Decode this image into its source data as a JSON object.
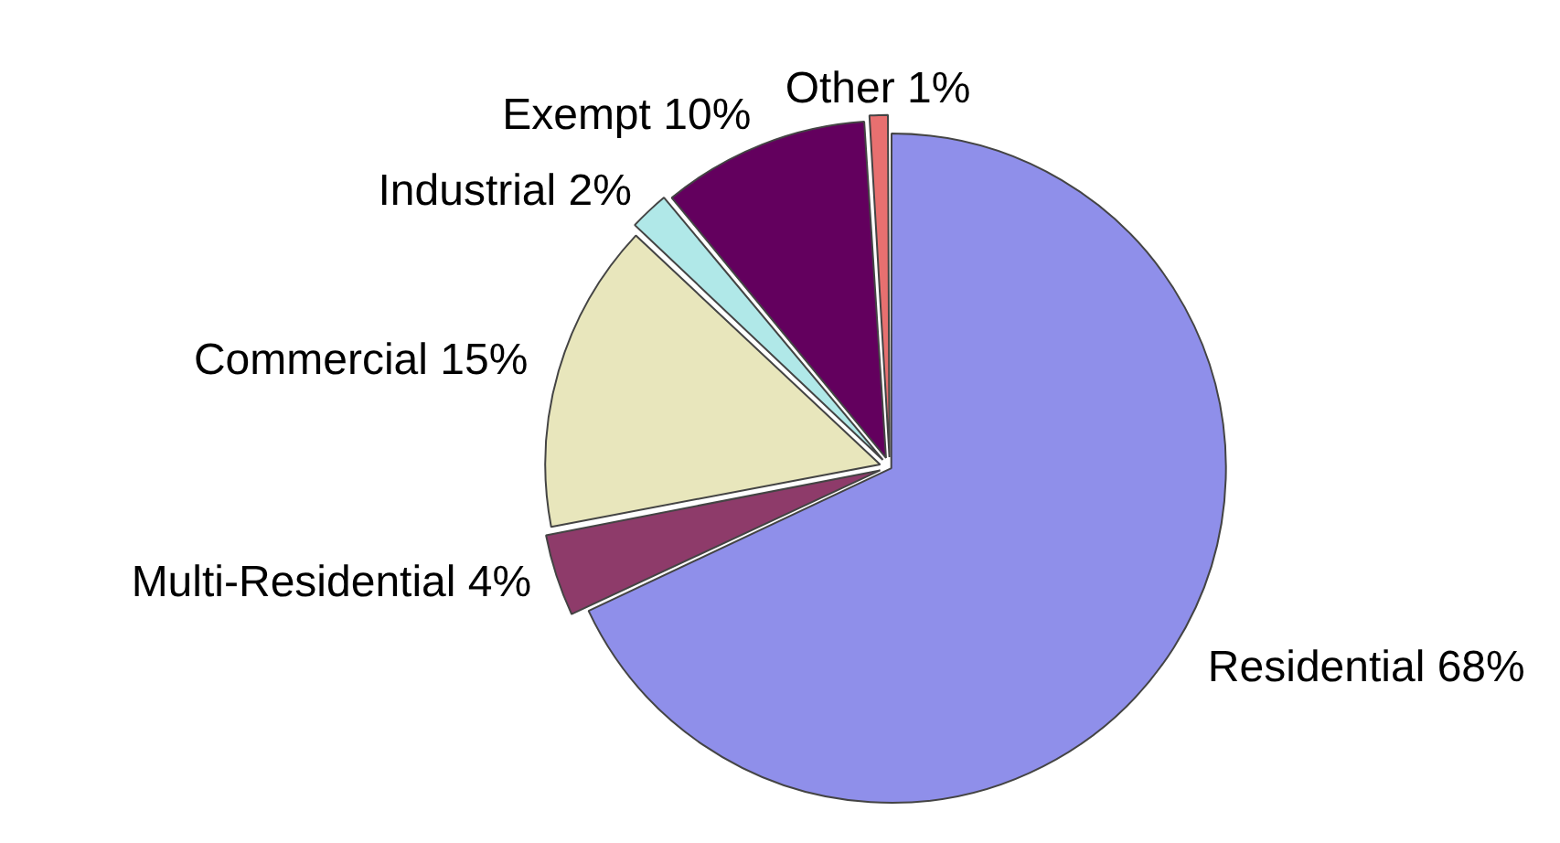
{
  "chart_data": {
    "type": "pie",
    "categories": [
      "Residential",
      "Multi-Residential",
      "Commercial",
      "Industrial",
      "Exempt",
      "Other"
    ],
    "values": [
      68,
      4,
      15,
      2,
      10,
      1
    ],
    "value_labels": [
      "68%",
      "4%",
      "15%",
      "2%",
      "10%",
      "1%"
    ],
    "colors": [
      "#8f8fea",
      "#8e3b6a",
      "#e8e6bc",
      "#b0e8e8",
      "#63005e",
      "#e87070"
    ],
    "legend": false
  }
}
